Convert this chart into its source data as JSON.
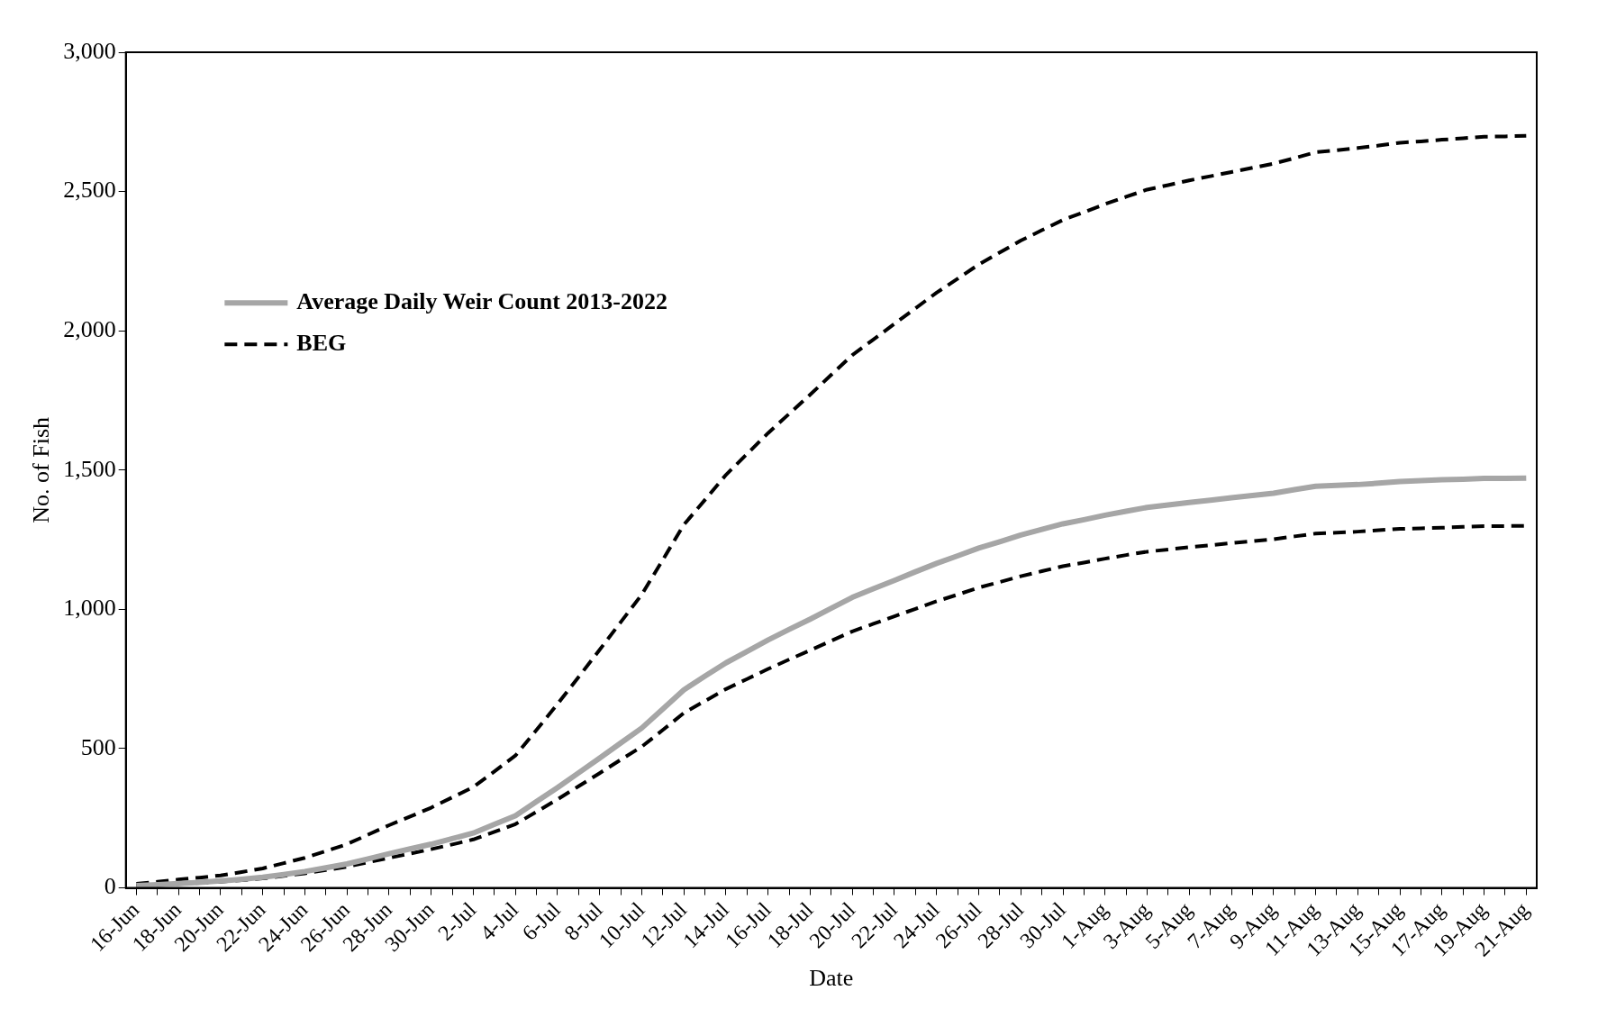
{
  "chart_data": {
    "type": "line",
    "xlabel": "Date",
    "ylabel": "No. of Fish",
    "categories": [
      "16-Jun",
      null,
      "18-Jun",
      null,
      "20-Jun",
      null,
      "22-Jun",
      null,
      "24-Jun",
      null,
      "26-Jun",
      null,
      "28-Jun",
      null,
      "30-Jun",
      null,
      "2-Jul",
      null,
      "4-Jul",
      null,
      "6-Jul",
      null,
      "8-Jul",
      null,
      "10-Jul",
      null,
      "12-Jul",
      null,
      "14-Jul",
      null,
      "16-Jul",
      null,
      "18-Jul",
      null,
      "20-Jul",
      null,
      "22-Jul",
      null,
      "24-Jul",
      null,
      "26-Jul",
      null,
      "28-Jul",
      null,
      "30-Jul",
      null,
      "1-Aug",
      null,
      "3-Aug",
      null,
      "5-Aug",
      null,
      "7-Aug",
      null,
      "9-Aug",
      null,
      "11-Aug",
      null,
      "13-Aug",
      null,
      "15-Aug",
      null,
      "17-Aug",
      null,
      "19-Aug",
      null,
      "21-Aug"
    ],
    "series": [
      {
        "name": "Average Daily Weir Count 2013-2022",
        "color": "#a6a6a6",
        "line_style": "solid",
        "values": [
          8,
          12,
          16,
          20,
          25,
          31,
          38,
          48,
          59,
          72,
          86,
          104,
          123,
          140,
          157,
          177,
          197,
          228,
          259,
          310,
          360,
          413,
          466,
          520,
          574,
          642,
          711,
          760,
          808,
          849,
          890,
          928,
          965,
          1004,
          1043,
          1074,
          1104,
          1135,
          1165,
          1192,
          1220,
          1243,
          1267,
          1287,
          1307,
          1322,
          1338,
          1352,
          1366,
          1375,
          1384,
          1392,
          1401,
          1409,
          1417,
          1430,
          1442,
          1445,
          1448,
          1453,
          1459,
          1462,
          1465,
          1467,
          1470,
          1470,
          1471
        ]
      },
      {
        "name": "BEG",
        "color": "#000000",
        "line_style": "dashed",
        "values": [
          7,
          10,
          14,
          18,
          22,
          28,
          34,
          43,
          52,
          64,
          76,
          92,
          108,
          123,
          139,
          156,
          174,
          201,
          229,
          273,
          318,
          365,
          412,
          460,
          507,
          567,
          628,
          671,
          714,
          750,
          786,
          820,
          853,
          887,
          921,
          948,
          975,
          1002,
          1029,
          1053,
          1078,
          1098,
          1119,
          1137,
          1155,
          1168,
          1182,
          1195,
          1207,
          1215,
          1223,
          1230,
          1238,
          1245,
          1252,
          1262,
          1272,
          1275,
          1279,
          1284,
          1289,
          1291,
          1293,
          1296,
          1299,
          1299,
          1300
        ]
      },
      {
        "color": "#000000",
        "line_style": "dashed",
        "values": [
          15,
          22,
          30,
          37,
          45,
          57,
          70,
          89,
          108,
          132,
          157,
          191,
          225,
          256,
          288,
          325,
          362,
          418,
          475,
          567,
          660,
          757,
          855,
          954,
          1053,
          1178,
          1304,
          1393,
          1483,
          1558,
          1633,
          1702,
          1771,
          1842,
          1913,
          1969,
          2025,
          2081,
          2137,
          2187,
          2238,
          2281,
          2324,
          2361,
          2398,
          2426,
          2455,
          2481,
          2507,
          2523,
          2540,
          2555,
          2570,
          2585,
          2600,
          2620,
          2641,
          2648,
          2656,
          2665,
          2675,
          2680,
          2686,
          2691,
          2697,
          2698,
          2700
        ]
      }
    ],
    "ylim": [
      0,
      3000
    ],
    "yticks": [
      {
        "value": 0,
        "label": "0"
      },
      {
        "value": 500,
        "label": "500"
      },
      {
        "value": 1000,
        "label": "1,000"
      },
      {
        "value": 1500,
        "label": "1,500"
      },
      {
        "value": 2000,
        "label": "2,000"
      },
      {
        "value": 2500,
        "label": "2,500"
      },
      {
        "value": 3000,
        "label": "3,000"
      }
    ],
    "grid": false,
    "legend": "top left",
    "marker": "none"
  }
}
